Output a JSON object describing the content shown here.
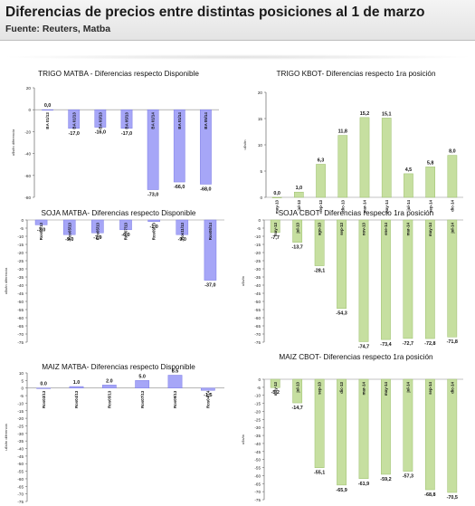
{
  "header": {
    "title": "Diferencias de precios entre distintas posiciones al 1 de marzo",
    "source": "Fuente: Reuters, Matba"
  },
  "colors": {
    "blue_bar": "#a6a6f7",
    "blue_edge": "#7c7ce6",
    "green_bar": "#c6dfa0",
    "green_edge": "#9cbf6c"
  },
  "chart_data": [
    {
      "title": "TRIGO MATBA - Diferencias respecto Disponible",
      "type": "bar",
      "color": "blue",
      "ylabel": "u$s/tn diferencia",
      "ylim": [
        -80,
        20
      ],
      "yticks": [
        20,
        0,
        -20,
        -40,
        -60,
        -80
      ],
      "categories": [
        "BA 01/13",
        "BA 01/13",
        "BA 03/13",
        "BA 05/13",
        "BA 01/14",
        "BA 01/14",
        "BA 05/14"
      ],
      "values": [
        0.0,
        -17.0,
        -16.0,
        -17.0,
        -73.0,
        -66.0,
        -68.0
      ],
      "labels": [
        "0,0",
        "-17,0",
        "-16,0",
        "-17,0",
        "-73,0",
        "-66,0",
        "-68,0"
      ]
    },
    {
      "title": "TRIGO KBOT- Diferencias respecto 1ra posición",
      "type": "bar",
      "color": "green",
      "ylabel": "u$s/tn",
      "ylim": [
        0,
        20
      ],
      "yticks": [
        20,
        15,
        10,
        5,
        0
      ],
      "categories": [
        "may-13",
        "jul-13",
        "sep-13",
        "dic-13",
        "mar-14",
        "may-14",
        "jul-14",
        "sep-14",
        "dic-14"
      ],
      "values": [
        0.0,
        1.0,
        6.3,
        11.8,
        15.2,
        15.1,
        4.5,
        5.8,
        8.0
      ],
      "labels": [
        "0,0",
        "1,0",
        "6,3",
        "11,8",
        "15,2",
        "15,1",
        "4,5",
        "5,8",
        "8,0"
      ]
    },
    {
      "title": "SOJA MATBA- Diferencias respecto Disponible",
      "type": "bar",
      "color": "blue",
      "ylabel": "u$s/tn diferencia",
      "ylim": [
        -75,
        0
      ],
      "yticks": [
        0,
        -5,
        -10,
        -15,
        -20,
        -25,
        -30,
        -35,
        -40,
        -45,
        -50,
        -55,
        -60,
        -65,
        -70,
        -75
      ],
      "categories": [
        "Ros03/13",
        "Ros05/13",
        "Ros05/13",
        "Ros07/13",
        "Ros09/13",
        "Ros11/13",
        "Ros05/14"
      ],
      "values": [
        -3.0,
        -9.0,
        -7.9,
        -6.0,
        -1.0,
        -9.0,
        -37.0
      ],
      "labels": [
        "-3,0",
        "-9,0",
        "-7,9",
        "-6,0",
        "-1,0",
        "-9,0",
        "-37,0"
      ]
    },
    {
      "title": "SOJA CBOT- Diferencias respecto 1ra posición",
      "type": "bar",
      "color": "green",
      "ylabel": "u$s/tn",
      "ylim": [
        -75,
        0
      ],
      "yticks": [
        0,
        -5,
        -10,
        -15,
        -20,
        -25,
        -30,
        -35,
        -40,
        -45,
        -50,
        -55,
        -60,
        -65,
        -70,
        -75
      ],
      "categories": [
        "may-13",
        "jul-13",
        "ago-13",
        "sep-13",
        "nov-13",
        "ene-14",
        "mar-14",
        "may-14",
        "jul-14"
      ],
      "values": [
        -7.7,
        -13.7,
        -28.1,
        -54.3,
        -74.7,
        -73.4,
        -72.7,
        -72.8,
        -71.8
      ],
      "labels": [
        "-7,7",
        "-13,7",
        "-28,1",
        "-54,3",
        "-74,7",
        "-73,4",
        "-72,7",
        "-72,8",
        "-71,8"
      ]
    },
    {
      "title": "MAIZ MATBA- Diferencias respecto Disponible",
      "type": "bar",
      "color": "blue",
      "ylabel": "u$s/tn diferencia",
      "ylim": [
        -75,
        10
      ],
      "yticks": [
        10,
        5,
        0,
        -5,
        -10,
        -15,
        -20,
        -25,
        -30,
        -35,
        -40,
        -45,
        -50,
        -55,
        -60,
        -65,
        -70,
        -75
      ],
      "categories": [
        "Ros03/13",
        "Ros04/13",
        "Ros05/13",
        "Ros07/13",
        "Ros09/13",
        "Ros04/14"
      ],
      "values": [
        0.0,
        1.0,
        2.0,
        5.0,
        8.5,
        -1.5
      ],
      "labels": [
        "0.0",
        "1.0",
        "2.0",
        "5.0",
        "8.5",
        "-1.5"
      ]
    },
    {
      "title": "MAIZ CBOT- Diferencias respecto 1ra posición",
      "type": "bar",
      "color": "green",
      "ylabel": "u$s/tn",
      "ylim": [
        -75,
        0
      ],
      "yticks": [
        0,
        -5,
        -10,
        -15,
        -20,
        -25,
        -30,
        -35,
        -40,
        -45,
        -50,
        -55,
        -60,
        -65,
        -70,
        -75
      ],
      "categories": [
        "may-13",
        "jul-13",
        "sep-13",
        "dic-13",
        "mar-14",
        "may-14",
        "jul-14",
        "sep-14",
        "dic-14"
      ],
      "values": [
        -5.2,
        -14.7,
        -55.1,
        -65.9,
        -61.9,
        -59.2,
        -57.3,
        -68.8,
        -70.5
      ],
      "labels": [
        "-5,2",
        "-14,7",
        "-55,1",
        "-65,9",
        "-61,9",
        "-59,2",
        "-57,3",
        "-68,8",
        "-70,5"
      ]
    }
  ]
}
